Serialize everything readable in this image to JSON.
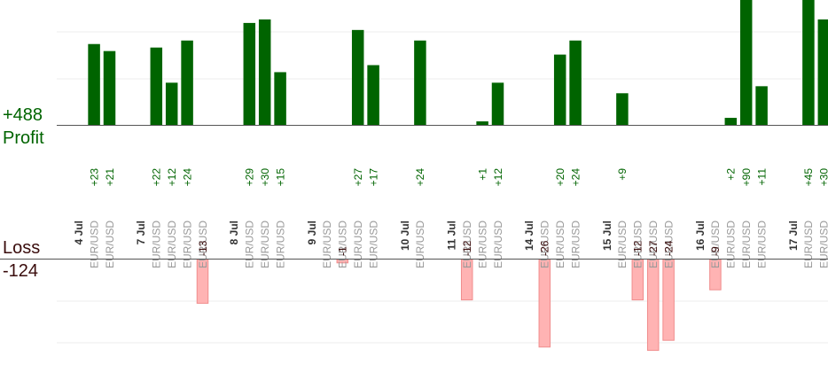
{
  "summary": {
    "profit_total": "+488",
    "profit_label": "Profit",
    "loss_label": "Loss",
    "loss_total": "-124"
  },
  "colors": {
    "profit_bar": "#006400",
    "profit_text": "#006400",
    "loss_bar": "#ffb3b3",
    "loss_bar_stroke": "#f08c8c",
    "loss_text": "#3a0c0c",
    "date_text": "#333333",
    "symbol_text": "#999999",
    "grid": "#eeeeee",
    "axis": "#555555"
  },
  "chart_data": {
    "type": "bar",
    "profit_axis_max": 32,
    "loss_axis_max": 30,
    "slots": [
      {
        "kind": "date",
        "label": "4 Jul"
      },
      {
        "kind": "trade",
        "symbol": "EUR/USD",
        "value": 23,
        "label": "+23"
      },
      {
        "kind": "trade",
        "symbol": "EUR/USD",
        "value": 21,
        "label": "+21"
      },
      {
        "kind": "gap"
      },
      {
        "kind": "date",
        "label": "7 Jul"
      },
      {
        "kind": "trade",
        "symbol": "EUR/USD",
        "value": 22,
        "label": "+22"
      },
      {
        "kind": "trade",
        "symbol": "EUR/USD",
        "value": 12,
        "label": "+12"
      },
      {
        "kind": "trade",
        "symbol": "EUR/USD",
        "value": 24,
        "label": "+24"
      },
      {
        "kind": "trade",
        "symbol": "EUR/USD",
        "value": -13,
        "label": "-13"
      },
      {
        "kind": "gap"
      },
      {
        "kind": "date",
        "label": "8 Jul"
      },
      {
        "kind": "trade",
        "symbol": "EUR/USD",
        "value": 29,
        "label": "+29"
      },
      {
        "kind": "trade",
        "symbol": "EUR/USD",
        "value": 30,
        "label": "+30"
      },
      {
        "kind": "trade",
        "symbol": "EUR/USD",
        "value": 15,
        "label": "+15"
      },
      {
        "kind": "gap"
      },
      {
        "kind": "date",
        "label": "9 Jul"
      },
      {
        "kind": "trade",
        "symbol": "EUR/USD",
        "value": 0,
        "label": ""
      },
      {
        "kind": "trade",
        "symbol": "EUR/USD",
        "value": -1,
        "label": "-1"
      },
      {
        "kind": "trade",
        "symbol": "EUR/USD",
        "value": 27,
        "label": "+27"
      },
      {
        "kind": "trade",
        "symbol": "EUR/USD",
        "value": 17,
        "label": "+17"
      },
      {
        "kind": "gap"
      },
      {
        "kind": "date",
        "label": "10 Jul"
      },
      {
        "kind": "trade",
        "symbol": "EUR/USD",
        "value": 24,
        "label": "+24"
      },
      {
        "kind": "gap"
      },
      {
        "kind": "date",
        "label": "11 Jul"
      },
      {
        "kind": "trade",
        "symbol": "EUR/USD",
        "value": -12,
        "label": "-12"
      },
      {
        "kind": "trade",
        "symbol": "EUR/USD",
        "value": 1,
        "label": "+1"
      },
      {
        "kind": "trade",
        "symbol": "EUR/USD",
        "value": 12,
        "label": "+12"
      },
      {
        "kind": "gap"
      },
      {
        "kind": "date",
        "label": "14 Jul"
      },
      {
        "kind": "trade",
        "symbol": "EUR/USD",
        "value": -26,
        "label": "-26"
      },
      {
        "kind": "trade",
        "symbol": "EUR/USD",
        "value": 20,
        "label": "+20"
      },
      {
        "kind": "trade",
        "symbol": "EUR/USD",
        "value": 24,
        "label": "+24"
      },
      {
        "kind": "gap"
      },
      {
        "kind": "date",
        "label": "15 Jul"
      },
      {
        "kind": "trade",
        "symbol": "EUR/USD",
        "value": 9,
        "label": "+9"
      },
      {
        "kind": "trade",
        "symbol": "EUR/USD",
        "value": -12,
        "label": "-12"
      },
      {
        "kind": "trade",
        "symbol": "EUR/USD",
        "value": -27,
        "label": "-27"
      },
      {
        "kind": "trade",
        "symbol": "EUR/USD",
        "value": -24,
        "label": "-24"
      },
      {
        "kind": "gap"
      },
      {
        "kind": "date",
        "label": "16 Jul"
      },
      {
        "kind": "trade",
        "symbol": "EUR/USD",
        "value": -9,
        "label": "-9"
      },
      {
        "kind": "trade",
        "symbol": "EUR/USD",
        "value": 2,
        "label": "+2"
      },
      {
        "kind": "trade",
        "symbol": "EUR/USD",
        "value": 90,
        "label": "+90"
      },
      {
        "kind": "trade",
        "symbol": "EUR/USD",
        "value": 11,
        "label": "+11"
      },
      {
        "kind": "gap"
      },
      {
        "kind": "date",
        "label": "17 Jul"
      },
      {
        "kind": "trade",
        "symbol": "EUR/USD",
        "value": 45,
        "label": "+45"
      },
      {
        "kind": "trade",
        "symbol": "EUR/USD",
        "value": 30,
        "label": "+30"
      }
    ]
  }
}
